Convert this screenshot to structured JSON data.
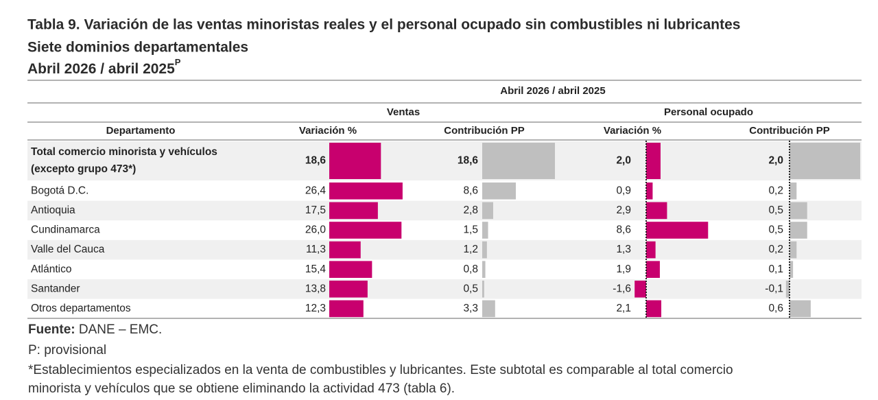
{
  "header": {
    "title": "Tabla 9. Variación de las ventas minoristas reales y el personal ocupado sin combustibles ni lubricantes",
    "subtitle": "Siete dominios departamentales",
    "period": "Abril 2026 / abril 2025",
    "period_note": "P"
  },
  "table": {
    "period": "Abril 2026 / abril 2025",
    "groups": [
      "Ventas",
      "Personal ocupado"
    ],
    "columns": [
      "Departamento",
      "Variación %",
      "Contribución PP",
      "Variación %",
      "Contribución PP"
    ],
    "total": {
      "label": [
        "Total comercio minorista  y vehículos",
        "(excepto grupo 473*)"
      ],
      "values": [
        "18,6",
        "18,6",
        "2,0",
        "2,0"
      ]
    },
    "rows": [
      {
        "label": "Bogotá D.C.",
        "values": [
          "26,4",
          "8,6",
          "0,9",
          "0,2"
        ]
      },
      {
        "label": "Antioquia",
        "values": [
          "17,5",
          "2,8",
          "2,9",
          "0,5"
        ]
      },
      {
        "label": "Cundinamarca",
        "values": [
          "26,0",
          "1,5",
          "8,6",
          "0,5"
        ]
      },
      {
        "label": "Valle del Cauca",
        "values": [
          "11,3",
          "1,2",
          "1,3",
          "0,2"
        ]
      },
      {
        "label": "Atlántico",
        "values": [
          "15,4",
          "0,8",
          "1,9",
          "0,1"
        ]
      },
      {
        "label": "Santander",
        "values": [
          "13,8",
          "0,5",
          "-1,6",
          "-0,1"
        ]
      },
      {
        "label": "Otros departamentos",
        "values": [
          "12,3",
          "3,3",
          "2,1",
          "0,6"
        ]
      }
    ]
  },
  "footer": {
    "source_label": "Fuente:",
    "source": " DANE – EMC.",
    "note_p": "P: provisional",
    "note_star": [
      "*Establecimientos especializados en la venta de combustibles y lubricantes. Este subtotal es comparable al total comercio",
      "minorista y vehículos que se obtiene eliminando la actividad 473 (tabla 6)."
    ]
  }
}
